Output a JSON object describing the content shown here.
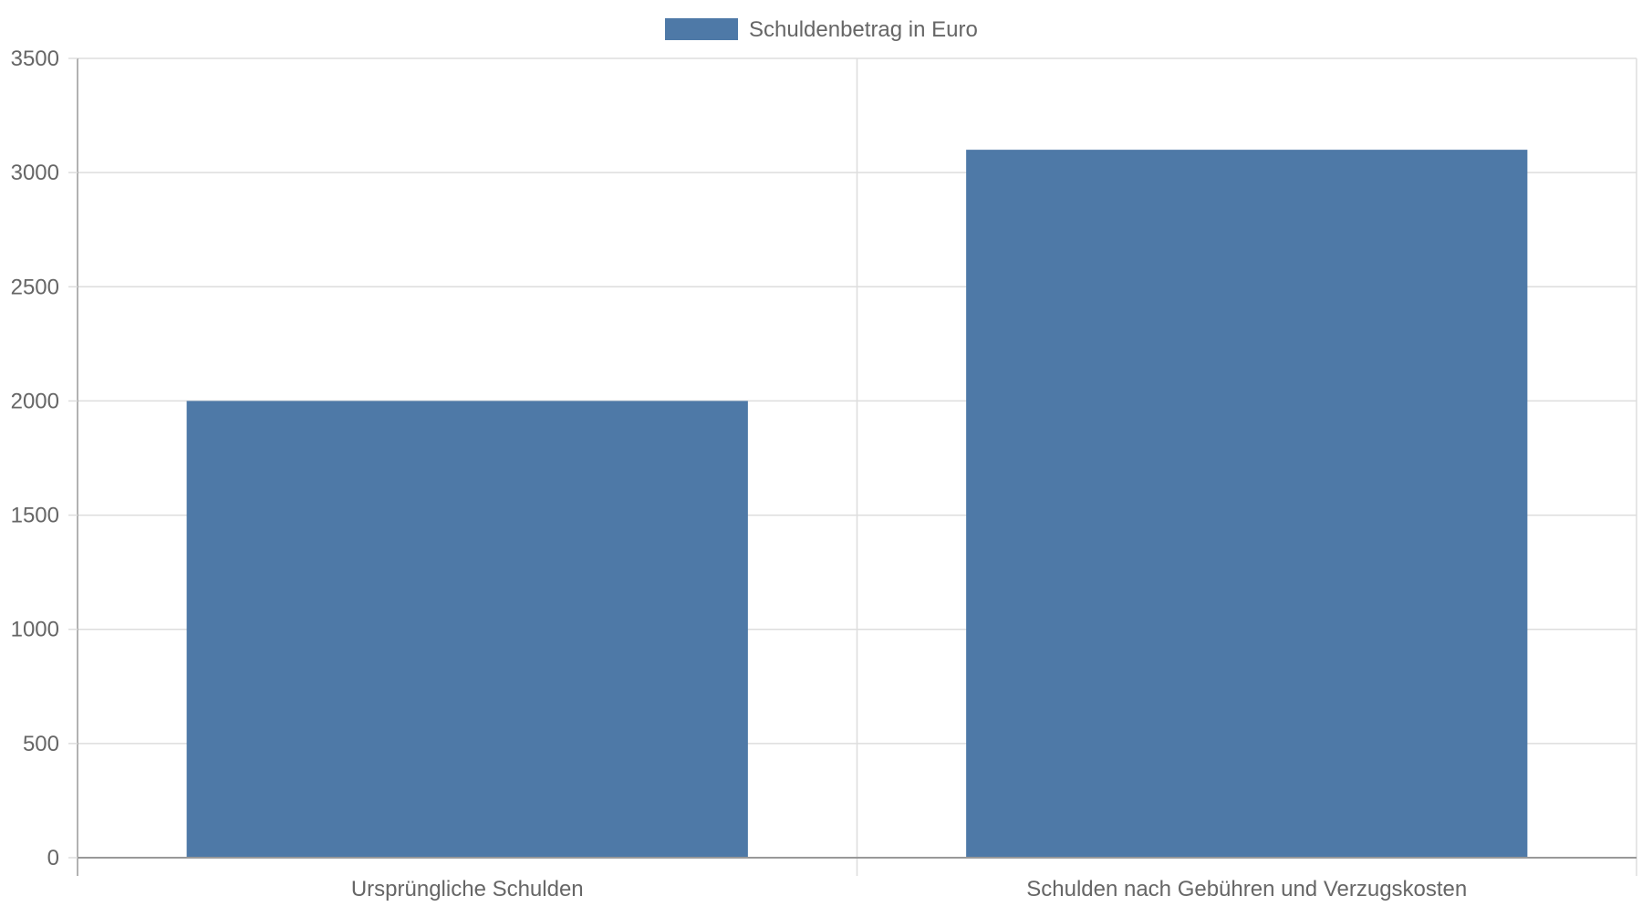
{
  "chart_data": {
    "type": "bar",
    "categories": [
      "Ursprüngliche Schulden",
      "Schulden nach Gebühren und Verzugskosten"
    ],
    "series": [
      {
        "name": "Schuldenbetrag in Euro",
        "values": [
          2000,
          3100
        ]
      }
    ],
    "title": "",
    "xlabel": "",
    "ylabel": "",
    "ylim": [
      0,
      3500
    ],
    "yticks": [
      0,
      500,
      1000,
      1500,
      2000,
      2500,
      3000,
      3500
    ],
    "grid": true,
    "legend_position": "top-center"
  },
  "colors": {
    "bar": "#4e79a7",
    "grid": "#dddddd",
    "axis": "#999999",
    "text": "#666666"
  }
}
